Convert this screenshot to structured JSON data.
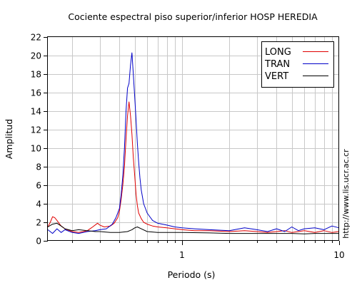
{
  "chart_data": {
    "type": "line",
    "title": "Cociente espectral piso superior/inferior  HOSP HEREDIA",
    "xlabel": "Periodo (s)",
    "ylabel": "Amplitud",
    "x_scale": "log",
    "xlim": [
      0.14,
      10
    ],
    "ylim": [
      0,
      22
    ],
    "x_ticks": [
      1,
      10
    ],
    "x_tick_labels": [
      "1",
      "10"
    ],
    "y_ticks": [
      0,
      2,
      4,
      6,
      8,
      10,
      12,
      14,
      16,
      18,
      20,
      22
    ],
    "y_tick_labels": [
      "0",
      "2",
      "4",
      "6",
      "8",
      "10",
      "12",
      "14",
      "16",
      "18",
      "20",
      "22"
    ],
    "grid": true,
    "legend_position": "top-right",
    "series": [
      {
        "name": "LONG",
        "color": "#e00000",
        "x": [
          0.14,
          0.145,
          0.15,
          0.155,
          0.16,
          0.17,
          0.18,
          0.2,
          0.22,
          0.25,
          0.27,
          0.29,
          0.3,
          0.32,
          0.35,
          0.37,
          0.39,
          0.4,
          0.41,
          0.42,
          0.43,
          0.44,
          0.45,
          0.46,
          0.47,
          0.48,
          0.49,
          0.5,
          0.51,
          0.52,
          0.53,
          0.55,
          0.57,
          0.6,
          0.65,
          0.7,
          0.8,
          0.9,
          1.0,
          1.2,
          1.5,
          2.0,
          2.5,
          3.0,
          3.5,
          4.0,
          4.5,
          5.0,
          5.5,
          6.0,
          7.0,
          8.0,
          9.0,
          10.0
        ],
        "y": [
          1.5,
          2.0,
          2.6,
          2.5,
          2.2,
          1.6,
          1.3,
          1.0,
          0.9,
          1.1,
          1.5,
          1.9,
          1.7,
          1.5,
          1.6,
          1.9,
          2.5,
          3.2,
          4.5,
          6.0,
          8.0,
          11.0,
          13.5,
          15.0,
          13.5,
          11.5,
          9.0,
          7.0,
          5.0,
          3.8,
          3.0,
          2.4,
          2.0,
          1.8,
          1.6,
          1.5,
          1.4,
          1.3,
          1.2,
          1.1,
          1.1,
          1.0,
          1.1,
          1.0,
          0.9,
          1.0,
          1.1,
          0.9,
          1.0,
          1.1,
          0.9,
          1.1,
          0.9,
          1.0
        ]
      },
      {
        "name": "TRAN",
        "color": "#0000c8",
        "x": [
          0.14,
          0.15,
          0.16,
          0.17,
          0.18,
          0.2,
          0.22,
          0.25,
          0.28,
          0.3,
          0.33,
          0.36,
          0.38,
          0.4,
          0.41,
          0.42,
          0.43,
          0.44,
          0.45,
          0.46,
          0.47,
          0.48,
          0.49,
          0.5,
          0.51,
          0.52,
          0.53,
          0.54,
          0.55,
          0.57,
          0.6,
          0.63,
          0.65,
          0.7,
          0.8,
          0.9,
          1.0,
          1.2,
          1.5,
          2.0,
          2.5,
          3.0,
          3.5,
          4.0,
          4.5,
          5.0,
          5.5,
          6.0,
          7.0,
          8.0,
          9.0,
          10.0
        ],
        "y": [
          1.2,
          0.8,
          1.3,
          0.9,
          1.2,
          0.9,
          0.8,
          1.0,
          1.1,
          1.2,
          1.3,
          1.8,
          2.5,
          3.5,
          5.0,
          7.0,
          10.0,
          14.0,
          16.5,
          17.0,
          19.0,
          20.3,
          18.0,
          15.5,
          13.0,
          10.5,
          8.5,
          6.8,
          5.5,
          4.0,
          3.0,
          2.5,
          2.2,
          1.9,
          1.7,
          1.5,
          1.4,
          1.3,
          1.2,
          1.1,
          1.4,
          1.2,
          1.0,
          1.3,
          1.0,
          1.5,
          1.1,
          1.3,
          1.4,
          1.2,
          1.6,
          1.4
        ]
      },
      {
        "name": "VERT",
        "color": "#000000",
        "x": [
          0.14,
          0.15,
          0.16,
          0.17,
          0.18,
          0.2,
          0.22,
          0.25,
          0.28,
          0.3,
          0.35,
          0.4,
          0.45,
          0.48,
          0.5,
          0.52,
          0.55,
          0.6,
          0.7,
          0.8,
          1.0,
          1.5,
          2.0,
          3.0,
          4.0,
          5.0,
          6.0,
          7.0,
          8.0,
          10.0
        ],
        "y": [
          1.5,
          1.8,
          1.9,
          1.6,
          1.3,
          1.1,
          1.2,
          1.1,
          1.0,
          1.0,
          0.9,
          0.9,
          1.0,
          1.2,
          1.4,
          1.5,
          1.3,
          1.0,
          0.9,
          0.9,
          0.9,
          0.85,
          0.8,
          0.8,
          0.8,
          0.8,
          0.75,
          0.8,
          0.8,
          0.8
        ]
      }
    ]
  },
  "side_label": "http://www.lis.ucr.ac.cr"
}
